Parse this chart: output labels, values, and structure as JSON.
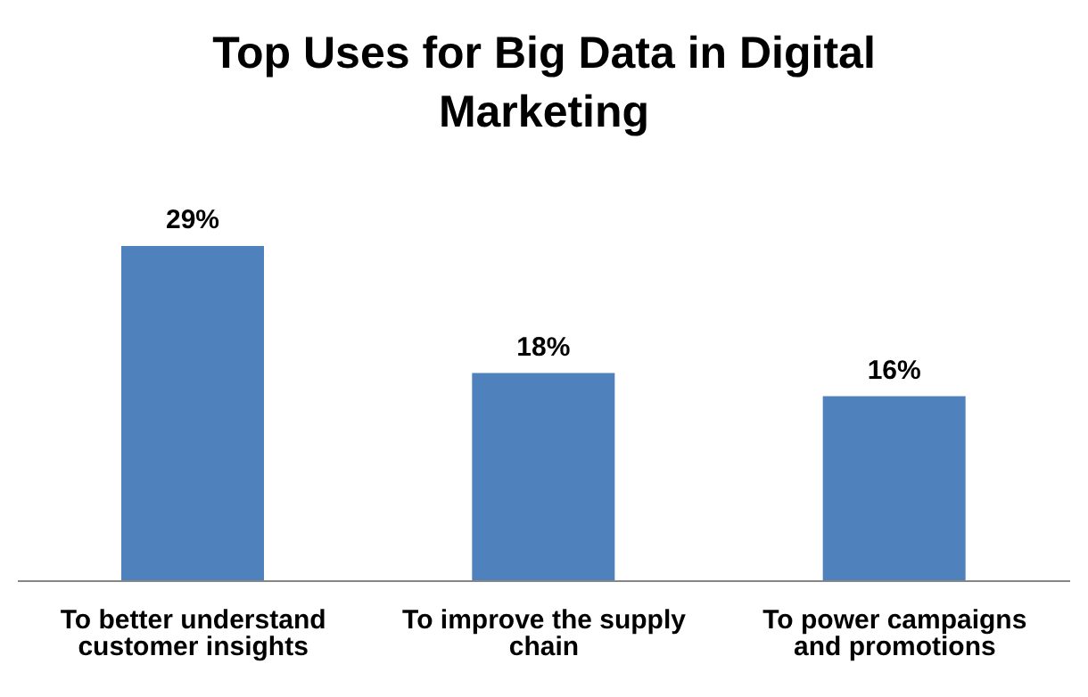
{
  "chart_data": {
    "type": "bar",
    "title": "Top Uses for Big Data in Digital Marketing",
    "categories": [
      "To better understand customer insights",
      "To improve the supply chain",
      "To power campaigns and promotions"
    ],
    "values": [
      29,
      18,
      16
    ],
    "value_labels": [
      "29%",
      "18%",
      "16%"
    ],
    "color": "#4f81bd",
    "tick_labels": "x"
  }
}
